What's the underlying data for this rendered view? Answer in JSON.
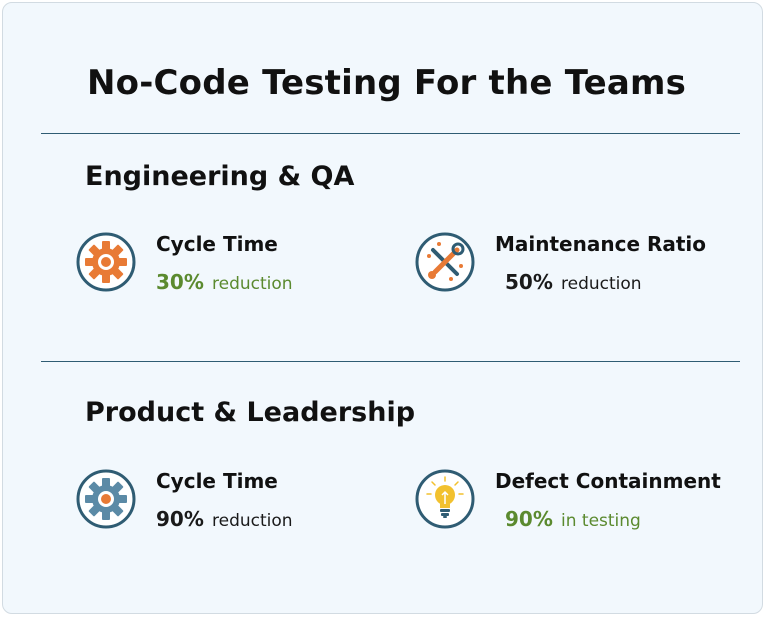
{
  "page": {
    "title": "No-Code Testing For the Teams"
  },
  "colors": {
    "background": "#f2f8fd",
    "divider": "#2f5c73",
    "icon_ring": "#2f5c73",
    "accent_green": "#5b8a2f",
    "accent_orange": "#e87a35",
    "gear_blue": "#5b8aa6",
    "bulb_yellow": "#f2c12e"
  },
  "sections": [
    {
      "heading": "Engineering & QA",
      "metrics": [
        {
          "icon": "orange-gear-icon",
          "label": "Cycle Time",
          "value": "30%",
          "note": "reduction",
          "value_color": "green",
          "note_color": "green"
        },
        {
          "icon": "tools-icon",
          "label": "Maintenance Ratio",
          "value": "50%",
          "note": "reduction",
          "value_color": "dark",
          "note_color": "dark"
        }
      ]
    },
    {
      "heading": "Product & Leadership",
      "metrics": [
        {
          "icon": "blue-gear-icon",
          "label": "Cycle Time",
          "value": "90%",
          "note": "reduction",
          "value_color": "dark",
          "note_color": "dark"
        },
        {
          "icon": "lightbulb-icon",
          "label": "Defect Containment",
          "value": "90%",
          "note": "in testing",
          "value_color": "green",
          "note_color": "green"
        }
      ]
    }
  ]
}
